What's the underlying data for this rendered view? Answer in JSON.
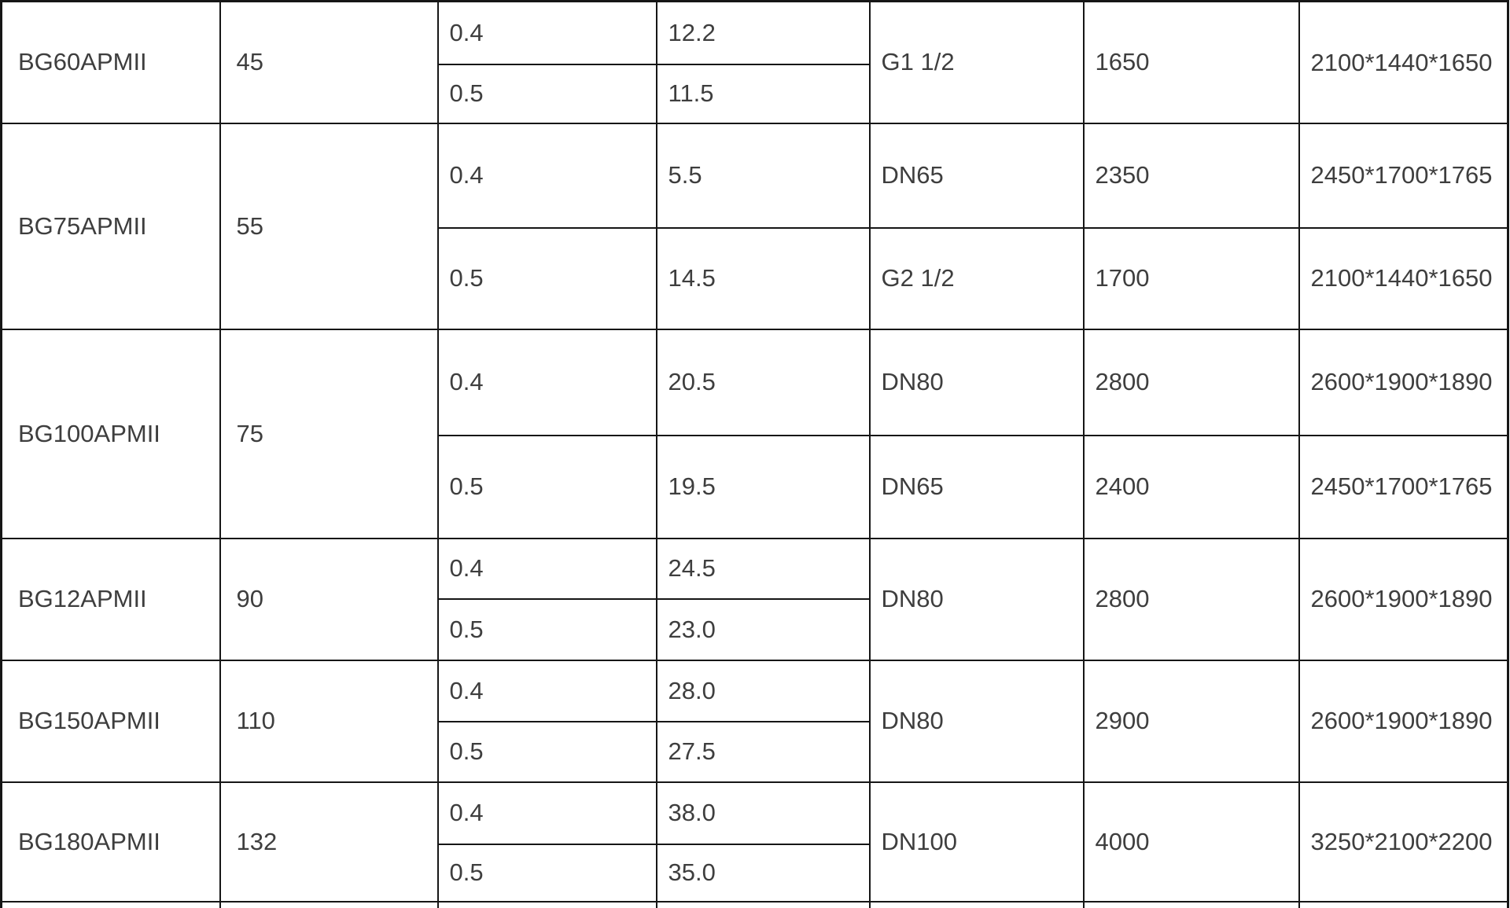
{
  "colors": {
    "background": "#ffffff",
    "border": "#161616",
    "text": "#3e3e3e"
  },
  "table": {
    "description": "product specification table, header row cut off above viewport, next row cut off below viewport, right border at screen edge",
    "groups": [
      {
        "model": "BG60APMII",
        "power": "45",
        "rows": [
          {
            "pressure": "0.4",
            "flow": "12.2"
          },
          {
            "pressure": "0.5",
            "flow": "11.5"
          }
        ],
        "merged": {
          "connection": "G1 1/2",
          "weight": "1650",
          "dimensions": "2100*1440*1650"
        }
      },
      {
        "model": "BG75APMII",
        "power": "55",
        "rows": [
          {
            "pressure": "0.4",
            "flow": "5.5",
            "connection": "DN65",
            "weight": "2350",
            "dimensions": "2450*1700*1765"
          },
          {
            "pressure": "0.5",
            "flow": "14.5",
            "connection": "G2 1/2",
            "weight": "1700",
            "dimensions": "2100*1440*1650"
          }
        ]
      },
      {
        "model": "BG100APMII",
        "power": "75",
        "rows": [
          {
            "pressure": "0.4",
            "flow": "20.5",
            "connection": "DN80",
            "weight": "2800",
            "dimensions": "2600*1900*1890"
          },
          {
            "pressure": "0.5",
            "flow": "19.5",
            "connection": "DN65",
            "weight": "2400",
            "dimensions": "2450*1700*1765"
          }
        ]
      },
      {
        "model": "BG12APMII",
        "power": "90",
        "rows": [
          {
            "pressure": "0.4",
            "flow": "24.5"
          },
          {
            "pressure": "0.5",
            "flow": "23.0"
          }
        ],
        "merged": {
          "connection": "DN80",
          "weight": "2800",
          "dimensions": "2600*1900*1890"
        }
      },
      {
        "model": "BG150APMII",
        "power": "110",
        "rows": [
          {
            "pressure": "0.4",
            "flow": "28.0"
          },
          {
            "pressure": "0.5",
            "flow": "27.5"
          }
        ],
        "merged": {
          "connection": "DN80",
          "weight": "2900",
          "dimensions": "2600*1900*1890"
        }
      },
      {
        "model": "BG180APMII",
        "power": "132",
        "rows": [
          {
            "pressure": "0.4",
            "flow": "38.0"
          },
          {
            "pressure": "0.5",
            "flow": "35.0"
          }
        ],
        "merged": {
          "connection": "DN100",
          "weight": "4000",
          "dimensions": "3250*2100*2200"
        }
      }
    ]
  }
}
